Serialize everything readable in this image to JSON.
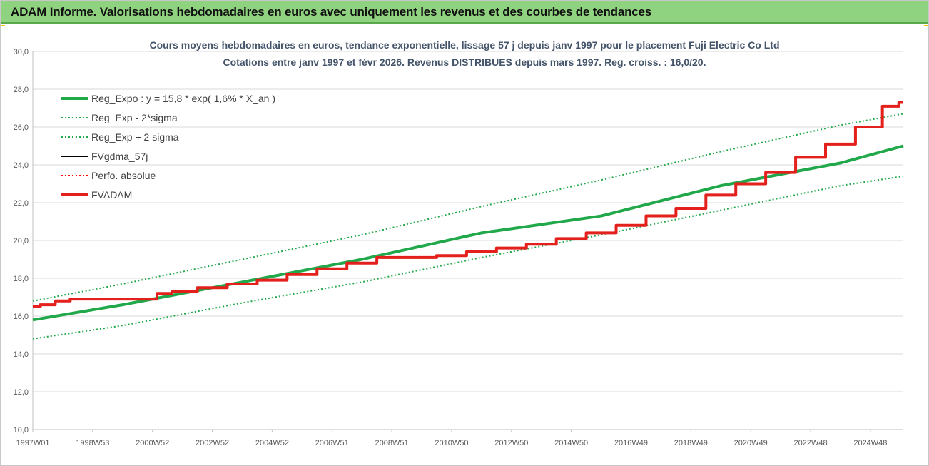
{
  "banner": {
    "title": "ADAM Informe. Valorisations hebdomadaires en euros avec uniquement les revenus et des courbes de tendances"
  },
  "chart_data": {
    "type": "line",
    "title_line1": "Cours moyens hebdomadaires en euros, tendance exponentielle, lissage 57 j depuis janv 1997 pour le placement Fuji Electric Co Ltd",
    "title_line2": "Cotations entre janv 1997 et févr 2026. Revenus DISTRIBUES depuis mars 1997. Reg. croiss. : 16,0/20.",
    "xlabel": "",
    "ylabel": "",
    "ylim": [
      10,
      30
    ],
    "xlim": [
      1997.0,
      2026.1
    ],
    "y_ticks": [
      "10,0",
      "12,0",
      "14,0",
      "16,0",
      "18,0",
      "20,0",
      "22,0",
      "24,0",
      "26,0",
      "28,0",
      "30,0"
    ],
    "x_ticks": [
      {
        "label": "1997W01",
        "x": 1997.0
      },
      {
        "label": "1998W53",
        "x": 1999.0
      },
      {
        "label": "2000W52",
        "x": 2001.0
      },
      {
        "label": "2002W52",
        "x": 2003.0
      },
      {
        "label": "2004W52",
        "x": 2005.0
      },
      {
        "label": "2006W51",
        "x": 2007.0
      },
      {
        "label": "2008W51",
        "x": 2009.0
      },
      {
        "label": "2010W50",
        "x": 2011.0
      },
      {
        "label": "2012W50",
        "x": 2013.0
      },
      {
        "label": "2014W50",
        "x": 2015.0
      },
      {
        "label": "2016W49",
        "x": 2017.0
      },
      {
        "label": "2018W49",
        "x": 2019.0
      },
      {
        "label": "2020W49",
        "x": 2021.0
      },
      {
        "label": "2022W48",
        "x": 2023.0
      },
      {
        "label": "2024W48",
        "x": 2025.0
      }
    ],
    "grid": "horizontal",
    "legend_position": "top-left",
    "series": [
      {
        "name": "Reg_Expo : y = 15,8 * exp( 1,6% *  X_an )",
        "color": "#21a84a",
        "style": "solid-thick",
        "x": [
          1997.0,
          2000.0,
          2004.0,
          2008.0,
          2012.0,
          2016.0,
          2020.0,
          2024.0,
          2026.1
        ],
        "y": [
          15.8,
          16.6,
          17.8,
          19.0,
          20.4,
          21.3,
          22.9,
          24.1,
          25.0
        ]
      },
      {
        "name": "Reg_Exp - 2*sigma",
        "color": "#21a84a",
        "style": "dotted",
        "x": [
          1997.0,
          2000.0,
          2004.0,
          2008.0,
          2012.0,
          2016.0,
          2020.0,
          2024.0,
          2026.1
        ],
        "y": [
          14.8,
          15.5,
          16.7,
          17.8,
          19.1,
          20.3,
          21.6,
          22.9,
          23.4
        ]
      },
      {
        "name": "Reg_Exp + 2 sigma",
        "color": "#21a84a",
        "style": "dotted",
        "x": [
          1997.0,
          2000.0,
          2004.0,
          2008.0,
          2012.0,
          2016.0,
          2020.0,
          2024.0,
          2026.1
        ],
        "y": [
          16.8,
          17.7,
          19.0,
          20.3,
          21.8,
          23.2,
          24.7,
          26.1,
          26.7
        ]
      },
      {
        "name": "FVgdma_57j",
        "color": "#000000",
        "style": "solid",
        "x": [
          1997.0,
          1997.5,
          1998.0,
          1998.5,
          2000.0,
          2001.0,
          2001.3,
          2002.0,
          2003.0,
          2004.0,
          2005.0,
          2006.0,
          2007.0,
          2008.0,
          2009.0,
          2010.0,
          2011.0,
          2012.0,
          2013.0,
          2014.0,
          2015.0,
          2016.0,
          2017.0,
          2018.0,
          2019.0,
          2020.0,
          2021.0,
          2022.0,
          2023.0,
          2024.0,
          2025.0,
          2025.8,
          2026.1
        ],
        "y": [
          16.5,
          16.6,
          16.8,
          16.9,
          16.9,
          16.9,
          17.2,
          17.3,
          17.5,
          17.7,
          17.9,
          18.2,
          18.5,
          18.8,
          19.1,
          19.1,
          19.2,
          19.4,
          19.6,
          19.8,
          20.1,
          20.4,
          20.8,
          21.3,
          21.7,
          22.4,
          23.0,
          23.6,
          24.4,
          25.1,
          26.0,
          27.1,
          27.3
        ]
      },
      {
        "name": "Perfo. absolue",
        "color": "#ff0000",
        "style": "dotted",
        "x": [
          1997.0,
          1997.5,
          1998.0,
          1998.5,
          2000.0,
          2001.0,
          2001.3,
          2002.0,
          2003.0,
          2004.0,
          2005.0,
          2006.0,
          2007.0,
          2008.0,
          2009.0,
          2010.0,
          2011.0,
          2012.0,
          2013.0,
          2014.0,
          2015.0,
          2016.0,
          2017.0,
          2018.0,
          2019.0,
          2020.0,
          2021.0,
          2022.0,
          2023.0,
          2024.0,
          2025.0,
          2025.8,
          2026.1
        ],
        "y": [
          16.5,
          16.6,
          16.8,
          16.9,
          16.9,
          16.9,
          17.2,
          17.3,
          17.5,
          17.7,
          17.9,
          18.2,
          18.5,
          18.8,
          19.1,
          19.1,
          19.2,
          19.4,
          19.6,
          19.8,
          20.1,
          20.4,
          20.8,
          21.3,
          21.7,
          22.4,
          23.0,
          23.6,
          24.4,
          25.1,
          26.0,
          27.1,
          27.3
        ]
      },
      {
        "name": "FVADAM",
        "color": "#e3201c",
        "style": "solid-thick",
        "x": [
          1997.0,
          1997.5,
          1998.0,
          1998.5,
          2000.0,
          2001.0,
          2001.3,
          2002.0,
          2003.0,
          2004.0,
          2005.0,
          2006.0,
          2007.0,
          2008.0,
          2009.0,
          2010.0,
          2011.0,
          2012.0,
          2013.0,
          2014.0,
          2015.0,
          2016.0,
          2017.0,
          2018.0,
          2019.0,
          2020.0,
          2021.0,
          2022.0,
          2023.0,
          2024.0,
          2025.0,
          2025.8,
          2026.1
        ],
        "y": [
          16.5,
          16.6,
          16.8,
          16.9,
          16.9,
          16.9,
          17.2,
          17.3,
          17.5,
          17.7,
          17.9,
          18.2,
          18.5,
          18.8,
          19.1,
          19.1,
          19.2,
          19.4,
          19.6,
          19.8,
          20.1,
          20.4,
          20.8,
          21.3,
          21.7,
          22.4,
          23.0,
          23.6,
          24.4,
          25.1,
          26.0,
          27.1,
          27.3
        ]
      }
    ]
  }
}
